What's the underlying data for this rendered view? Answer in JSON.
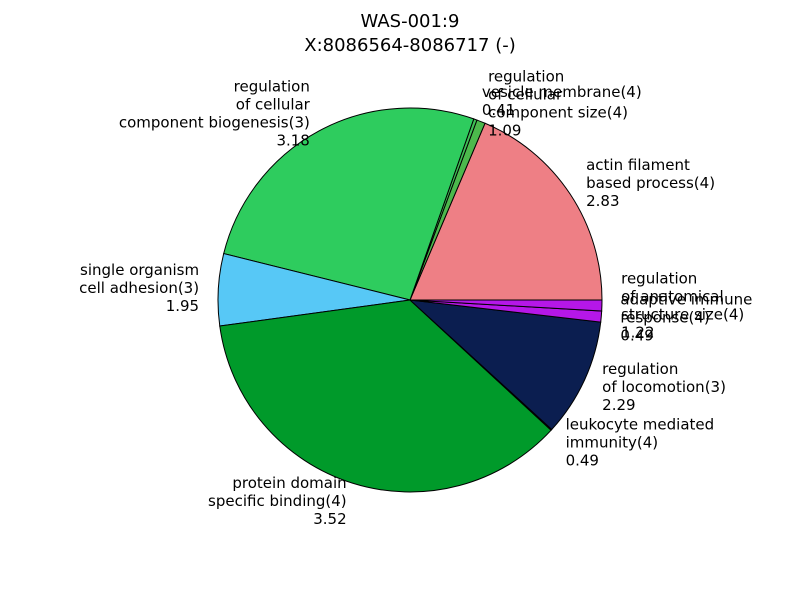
{
  "chart_data": {
    "type": "pie",
    "title": [
      "WAS-001:9",
      "X:8086564-8086717 (-)"
    ],
    "labels": [
      [
        "actin filament",
        "based process(4)",
        "2.83"
      ],
      [
        "regulation",
        "of cellular",
        "component size(4)",
        "1.09"
      ],
      [
        "vesicle membrane(4)",
        "0.41"
      ],
      [
        "regulation",
        "of cellular",
        "component biogenesis(3)",
        "3.18"
      ],
      [
        "single organism",
        "cell adhesion(3)",
        "1.95"
      ],
      [
        "protein domain",
        "specific binding(4)",
        "3.52"
      ],
      [
        "leukocyte mediated",
        "immunity(4)",
        "0.49"
      ],
      [
        "regulation",
        "of locomotion(3)",
        "2.29"
      ],
      [
        "adaptive immune",
        "response(4)",
        "0.49"
      ],
      [
        "regulation",
        "of anatomical",
        "structure size(4)",
        "1.22"
      ]
    ],
    "values": [
      67,
      2.6,
      1,
      95.4,
      21.8,
      129.5,
      0.3,
      35.8,
      3.3,
      3.3
    ],
    "colors": [
      "#ee7f85",
      "#4cb84c",
      "#3fbf55",
      "#2ecc5e",
      "#57c8f6",
      "#009a2a",
      "#0b1e50",
      "#0b1e50",
      "#b517e8",
      "#b517e8"
    ],
    "start_angle": 0,
    "counterclockwise": true
  }
}
